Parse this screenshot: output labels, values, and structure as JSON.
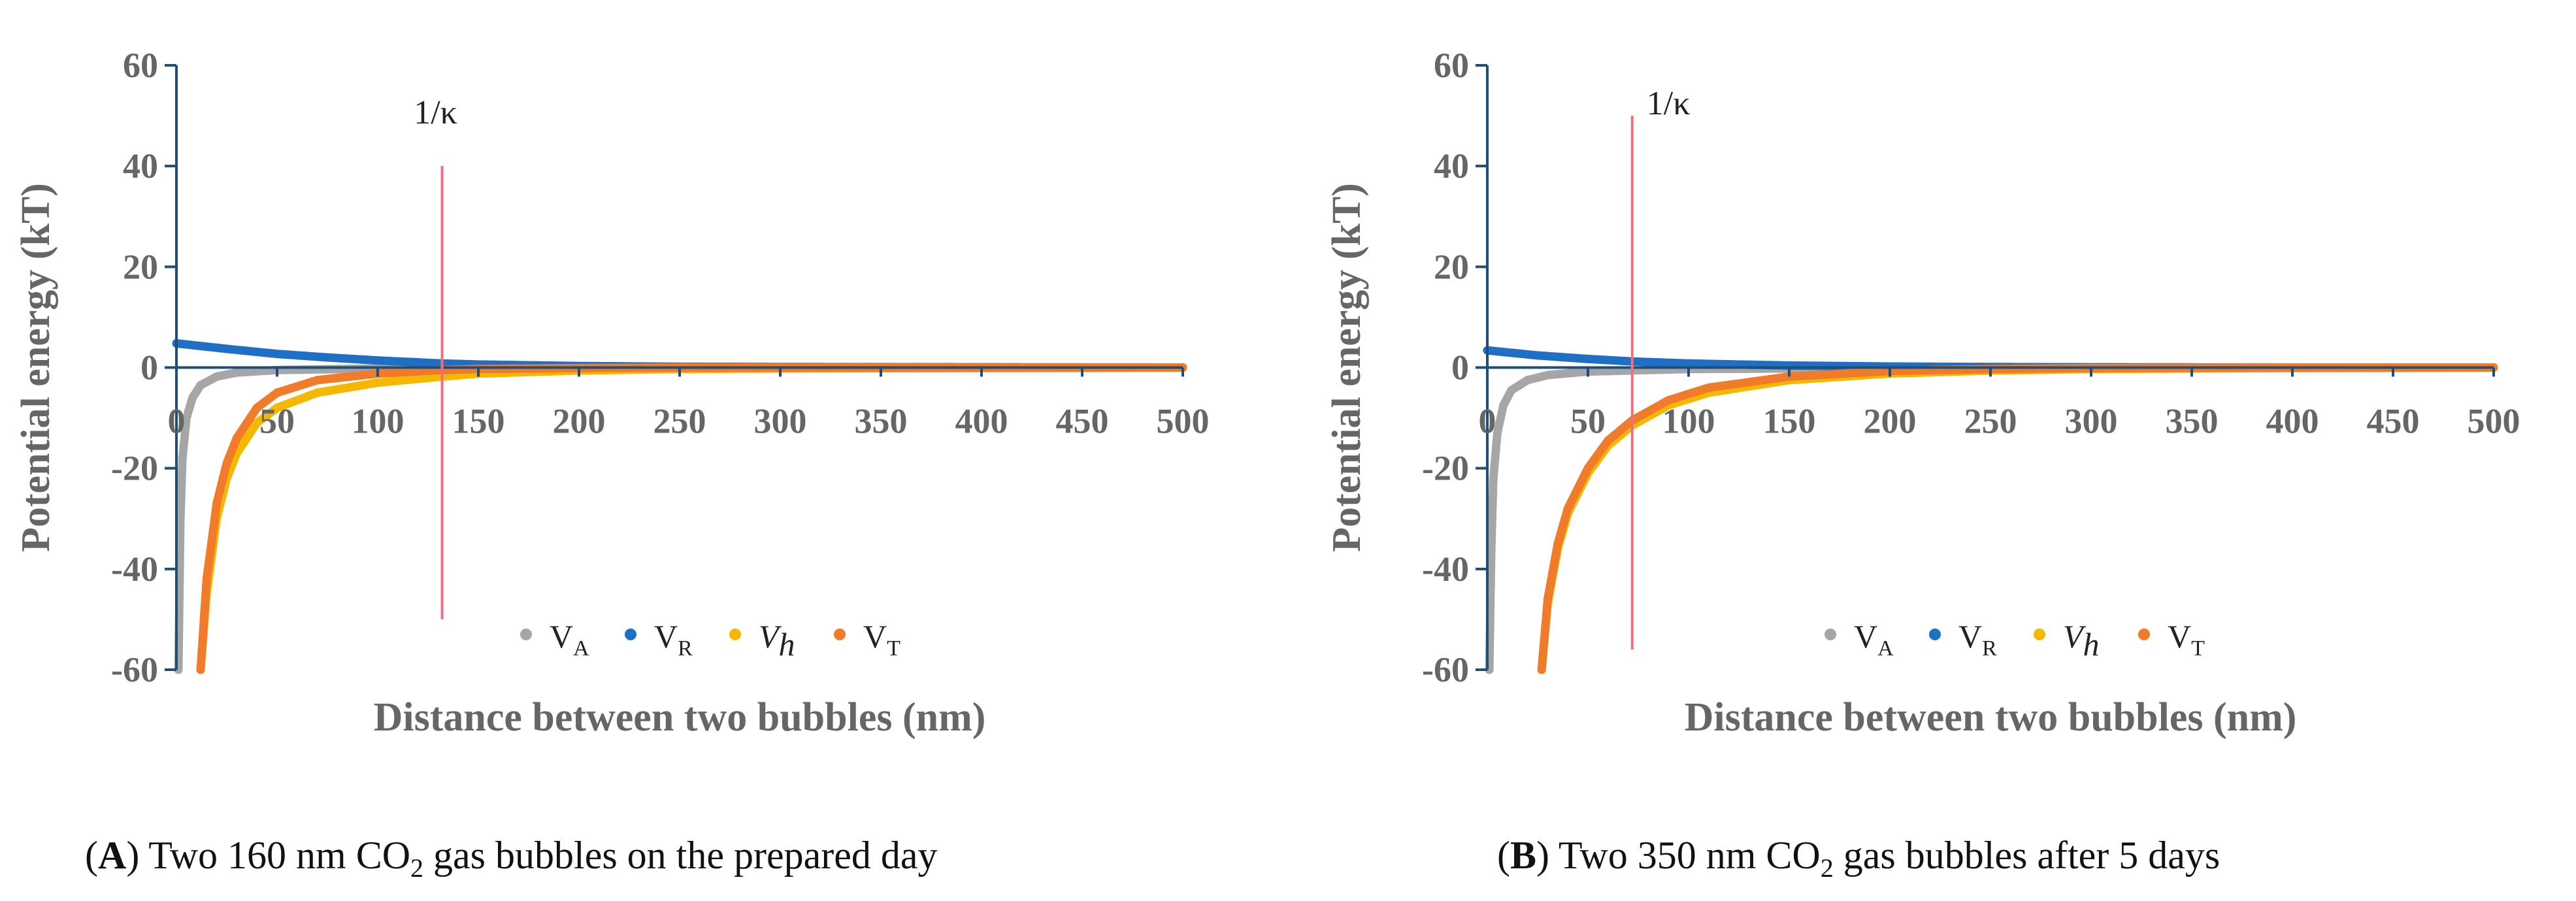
{
  "colors": {
    "VA": "#a6a6a6",
    "VR": "#1f6fc5",
    "Vh": "#f5b800",
    "VT": "#f07b2a",
    "kappa_line": "#ef6f80",
    "axis": "#1f4e79",
    "text": "#666666"
  },
  "chart_data": [
    {
      "type": "scatter",
      "panel_letter": "A",
      "caption": {
        "open": "(",
        "letter": "A",
        "close": ")",
        "text": " Two 160 nm CO",
        "sub": "2",
        "rest": " gas bubbles on the prepared day"
      },
      "title": "",
      "xlabel": "Distance between two bubbles (nm)",
      "ylabel": "Potential energy (kT)",
      "xlim": [
        0,
        500
      ],
      "ylim": [
        -60,
        60
      ],
      "xticks": [
        0,
        50,
        100,
        150,
        200,
        250,
        300,
        350,
        400,
        450,
        500
      ],
      "yticks": [
        60,
        40,
        20,
        0,
        -20,
        -40,
        -60
      ],
      "grid": false,
      "legend": "bottom-center",
      "legend_labels": {
        "VA_main": "V",
        "VA_sub": "A",
        "VR_main": "V",
        "VR_sub": "R",
        "Vh_main": "V",
        "Vh_sub": "h",
        "VT_main": "V",
        "VT_sub": "T"
      },
      "annotation": {
        "text": "1/κ",
        "x": 132,
        "y_range": [
          -50,
          40
        ]
      },
      "series": [
        {
          "name": "VA",
          "x": [
            1,
            2,
            3,
            5,
            8,
            12,
            20,
            30,
            50,
            100,
            200,
            500
          ],
          "y": [
            -60,
            -30,
            -18,
            -10,
            -6,
            -3.5,
            -1.8,
            -1.0,
            -0.5,
            -0.2,
            -0.1,
            0
          ]
        },
        {
          "name": "VR",
          "x": [
            0,
            25,
            50,
            75,
            100,
            132,
            150,
            200,
            250,
            300,
            400,
            500
          ],
          "y": [
            4.8,
            3.7,
            2.7,
            2.0,
            1.4,
            0.8,
            0.6,
            0.3,
            0.15,
            0.1,
            0.05,
            0
          ]
        },
        {
          "name": "Vh",
          "x": [
            12,
            15,
            20,
            25,
            30,
            40,
            50,
            70,
            100,
            132,
            150,
            200,
            250,
            300,
            400,
            500
          ],
          "y": [
            -60,
            -45,
            -30,
            -22,
            -17,
            -11,
            -8,
            -5,
            -3,
            -1.8,
            -1.2,
            -0.6,
            -0.3,
            -0.2,
            -0.1,
            0
          ]
        },
        {
          "name": "VT",
          "x": [
            12,
            15,
            20,
            25,
            30,
            40,
            50,
            70,
            100,
            132,
            150,
            200,
            250,
            300,
            400,
            500
          ],
          "y": [
            -60,
            -42,
            -27,
            -19,
            -14,
            -8,
            -5,
            -2.5,
            -1.2,
            -0.5,
            -0.3,
            -0.1,
            0,
            0,
            0,
            0
          ]
        }
      ]
    },
    {
      "type": "scatter",
      "panel_letter": "B",
      "caption": {
        "open": "(",
        "letter": "B",
        "close": ")",
        "text": " Two 350 nm CO",
        "sub": "2",
        "rest": " gas bubbles after 5 days"
      },
      "title": "",
      "xlabel": "Distance between two bubbles (nm)",
      "ylabel": "Potential energy (kT)",
      "xlim": [
        0,
        500
      ],
      "ylim": [
        -60,
        60
      ],
      "xticks": [
        0,
        50,
        100,
        150,
        200,
        250,
        300,
        350,
        400,
        450,
        500
      ],
      "yticks": [
        60,
        40,
        20,
        0,
        -20,
        -40,
        -60
      ],
      "grid": false,
      "legend": "bottom-right",
      "legend_labels": {
        "VA_main": "V",
        "VA_sub": "A",
        "VR_main": "V",
        "VR_sub": "R",
        "Vh_main": "V",
        "Vh_sub": "h",
        "VT_main": "V",
        "VT_sub": "T"
      },
      "annotation": {
        "text": "1/κ",
        "x": 72,
        "y_range": [
          -56,
          50
        ]
      },
      "series": [
        {
          "name": "VA",
          "x": [
            1,
            2,
            3,
            5,
            8,
            12,
            20,
            30,
            50,
            100,
            200,
            500
          ],
          "y": [
            -60,
            -36,
            -22,
            -13,
            -7.5,
            -4.5,
            -2.5,
            -1.5,
            -0.8,
            -0.3,
            -0.1,
            0
          ]
        },
        {
          "name": "VR",
          "x": [
            0,
            25,
            50,
            72,
            100,
            150,
            200,
            250,
            300,
            400,
            500
          ],
          "y": [
            3.4,
            2.4,
            1.7,
            1.2,
            0.8,
            0.4,
            0.2,
            0.1,
            0.05,
            0,
            0
          ]
        },
        {
          "name": "Vh",
          "x": [
            27,
            30,
            35,
            40,
            50,
            60,
            72,
            90,
            110,
            150,
            200,
            250,
            300,
            400,
            500
          ],
          "y": [
            -60,
            -47,
            -36,
            -29,
            -21,
            -15.5,
            -11.5,
            -7.5,
            -5,
            -2.5,
            -1.2,
            -0.6,
            -0.3,
            -0.1,
            0
          ]
        },
        {
          "name": "VT",
          "x": [
            27,
            30,
            35,
            40,
            50,
            60,
            72,
            90,
            110,
            150,
            200,
            250,
            300,
            400,
            500
          ],
          "y": [
            -60,
            -46,
            -35,
            -28,
            -20,
            -14.5,
            -10.5,
            -6.5,
            -4,
            -1.8,
            -0.7,
            -0.3,
            -0.1,
            0,
            0
          ]
        }
      ]
    }
  ]
}
